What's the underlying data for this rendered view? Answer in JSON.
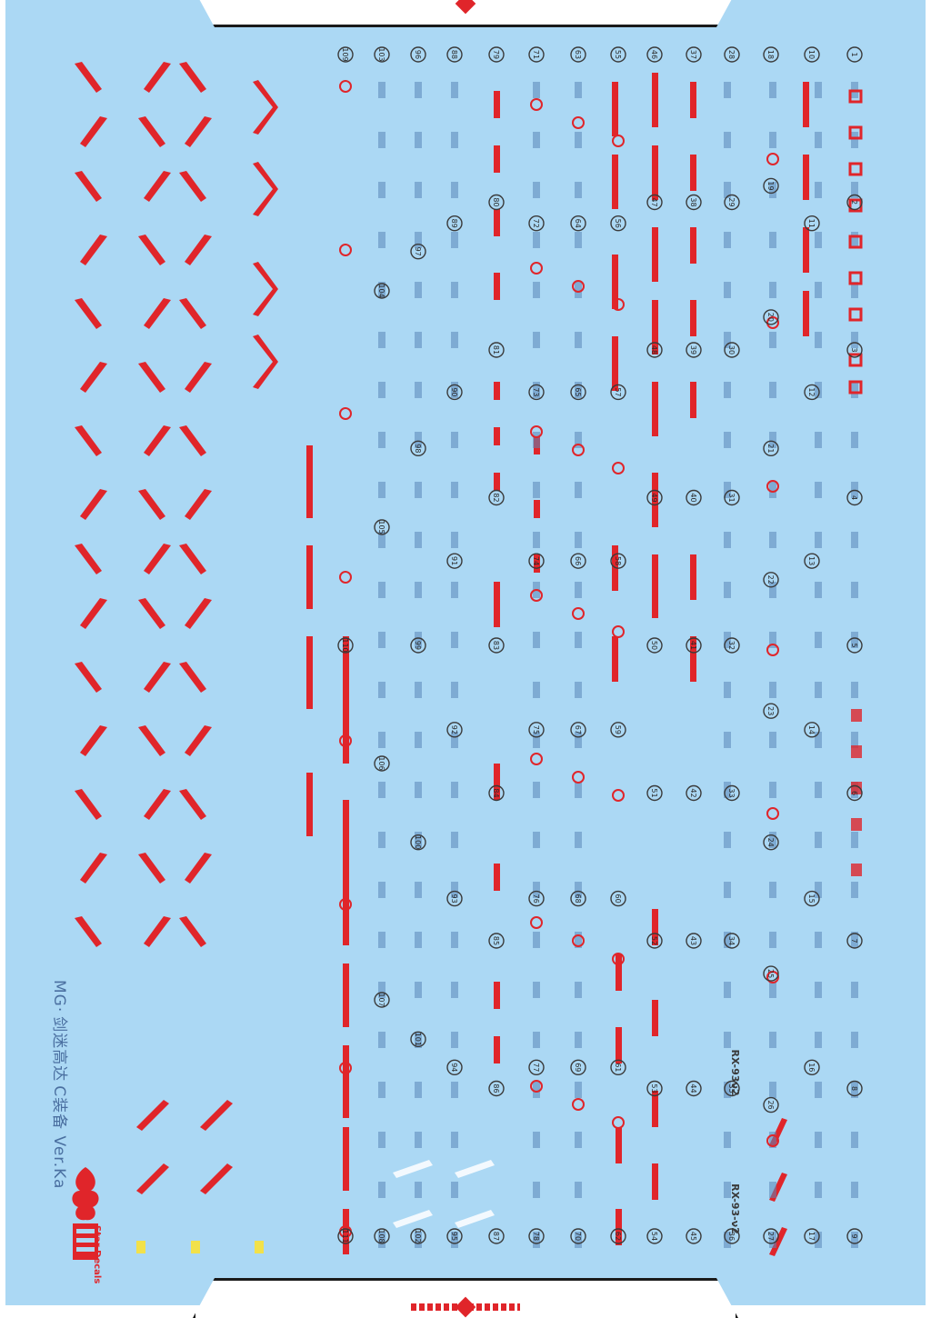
{
  "sheet": {
    "title_prefix": "MG·",
    "title_cn": "剑迷高达",
    "title_suffix": "C装备 Ver.Ka",
    "brand": "Star Decals",
    "bg_color": "#abd8f4",
    "accent_red": "#e0252a"
  },
  "markers": {
    "col_1": [
      "1",
      "2",
      "3",
      "4",
      "5",
      "6",
      "7",
      "8",
      "9"
    ],
    "col_2": [
      "10",
      "11",
      "12",
      "13",
      "14",
      "15",
      "16",
      "17"
    ],
    "col_3": [
      "18",
      "19",
      "20",
      "21",
      "22",
      "23",
      "24",
      "25",
      "26",
      "27"
    ],
    "col_4": [
      "28",
      "29",
      "30",
      "31",
      "32",
      "33",
      "34",
      "35",
      "36"
    ],
    "col_5": [
      "37",
      "38",
      "39",
      "40",
      "41",
      "42",
      "43",
      "44",
      "45"
    ],
    "col_6": [
      "46",
      "47",
      "48",
      "49",
      "50",
      "51",
      "52",
      "53",
      "54"
    ],
    "col_7": [
      "55",
      "56",
      "57",
      "58",
      "59",
      "60",
      "61",
      "62"
    ],
    "col_8": [
      "63",
      "64",
      "65",
      "66",
      "67",
      "68",
      "69",
      "70"
    ],
    "col_9": [
      "71",
      "72",
      "73",
      "74",
      "75",
      "76",
      "77",
      "78"
    ],
    "col_10": [
      "79",
      "80",
      "81",
      "82",
      "83",
      "84",
      "85",
      "86",
      "87"
    ],
    "col_11": [
      "88",
      "89",
      "90",
      "91",
      "92",
      "93",
      "94",
      "95"
    ],
    "col_12": [
      "96",
      "97",
      "98",
      "99",
      "100",
      "101",
      "102"
    ],
    "col_13": [
      "103",
      "104",
      "105",
      "106",
      "107",
      "108"
    ],
    "col_14": [
      "109",
      "110",
      "111"
    ]
  },
  "labels": {
    "unit_code_a": "RX-93ν2",
    "unit_code_b": "RX-93-ν2"
  }
}
